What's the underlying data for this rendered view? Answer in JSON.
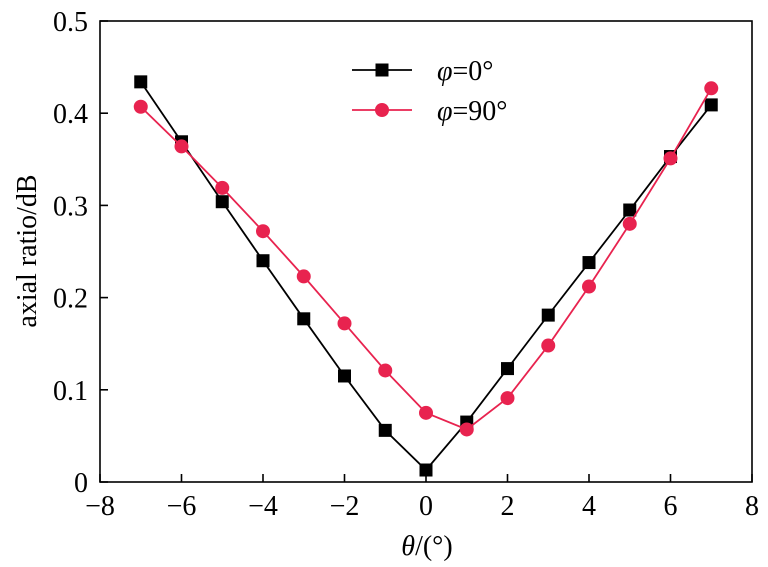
{
  "chart_data": {
    "type": "line",
    "title": "",
    "xlabel_parts": {
      "symbol": "θ",
      "rest": "/(°)"
    },
    "ylabel": "axial ratio/dB",
    "xlim": [
      -8,
      8
    ],
    "ylim": [
      0,
      0.5
    ],
    "xticks": [
      -8,
      -6,
      -4,
      -2,
      0,
      2,
      4,
      6,
      8
    ],
    "yticks": [
      0,
      0.1,
      0.2,
      0.3,
      0.4,
      0.5
    ],
    "xtick_labels": [
      "−8",
      "−6",
      "−4",
      "−2",
      "0",
      "2",
      "4",
      "6",
      "8"
    ],
    "ytick_labels": [
      "0",
      "0.1",
      "0.2",
      "0.3",
      "0.4",
      "0.5"
    ],
    "grid": false,
    "legend_position": "top-center",
    "x": [
      -7,
      -6,
      -5,
      -4,
      -3,
      -2,
      -1,
      0,
      1,
      2,
      3,
      4,
      5,
      6,
      7
    ],
    "series": [
      {
        "name_symbol": "φ",
        "name_rest": "=0°",
        "color": "#000000",
        "marker": "square",
        "values": [
          0.434,
          0.369,
          0.304,
          0.24,
          0.177,
          0.115,
          0.056,
          0.013,
          0.065,
          0.123,
          0.181,
          0.238,
          0.295,
          0.353,
          0.409
        ]
      },
      {
        "name_symbol": "φ",
        "name_rest": "=90°",
        "color": "#e8234f",
        "marker": "circle",
        "values": [
          0.407,
          0.364,
          0.319,
          0.272,
          0.223,
          0.172,
          0.121,
          0.075,
          0.057,
          0.091,
          0.148,
          0.212,
          0.28,
          0.351,
          0.427
        ]
      }
    ]
  }
}
